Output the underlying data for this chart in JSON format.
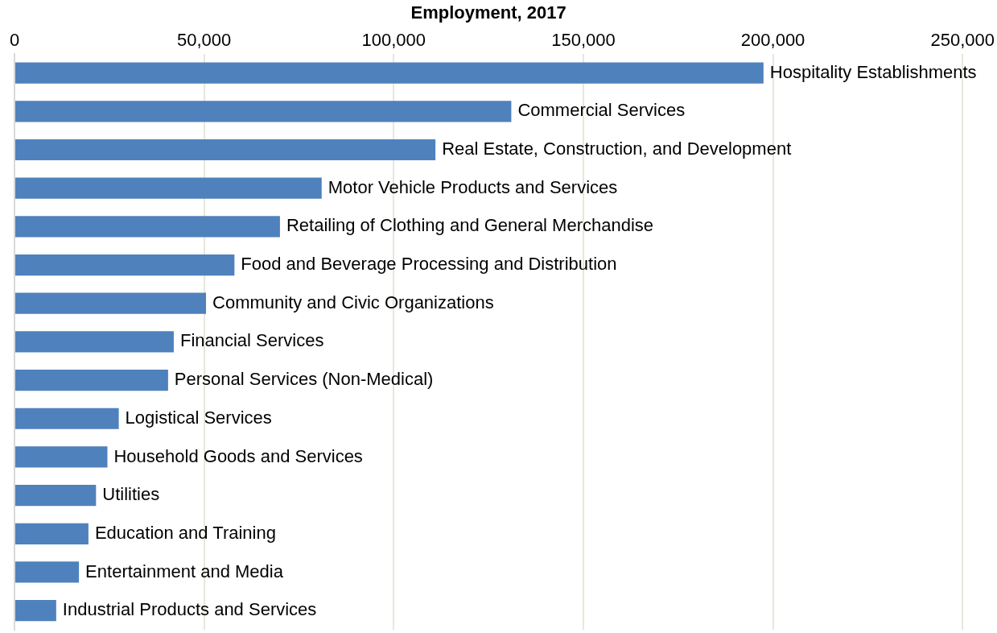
{
  "chart_data": {
    "type": "bar",
    "orientation": "horizontal",
    "xlabel": "Employment, 2017",
    "categories": [
      "Hospitality Establishments",
      "Commercial Services",
      "Real Estate, Construction, and Development",
      "Motor Vehicle Products and Services",
      "Retailing of Clothing and General Merchandise",
      "Food and Beverage Processing and Distribution",
      "Community and Civic Organizations",
      "Financial Services",
      "Personal Services (Non-Medical)",
      "Logistical Services",
      "Household Goods and Services",
      "Utilities",
      "Education and Training",
      "Entertainment and Media",
      "Industrial Products and Services"
    ],
    "values": [
      197500,
      131000,
      111000,
      81000,
      70000,
      58000,
      50500,
      42000,
      40500,
      27500,
      24500,
      21500,
      19500,
      17000,
      11000
    ],
    "color": "#4f81bd",
    "xlim": [
      0,
      250000
    ],
    "xticks": [
      {
        "value": 0,
        "label": "0"
      },
      {
        "value": 50000,
        "label": "50,000"
      },
      {
        "value": 100000,
        "label": "100,000"
      },
      {
        "value": 150000,
        "label": "150,000"
      },
      {
        "value": 200000,
        "label": "200,000"
      },
      {
        "value": 250000,
        "label": "250,000"
      }
    ],
    "grid": "x",
    "legend": false
  }
}
